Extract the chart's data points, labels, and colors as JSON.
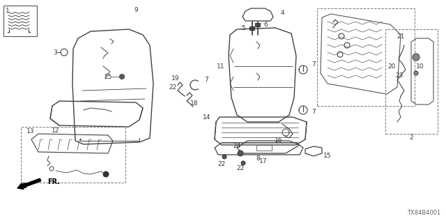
{
  "bg_color": "#ffffff",
  "diagram_code": "TX84B4001",
  "lc": "#404040",
  "tc": "#333333",
  "fs": 6.5,
  "fs_sm": 5.5
}
